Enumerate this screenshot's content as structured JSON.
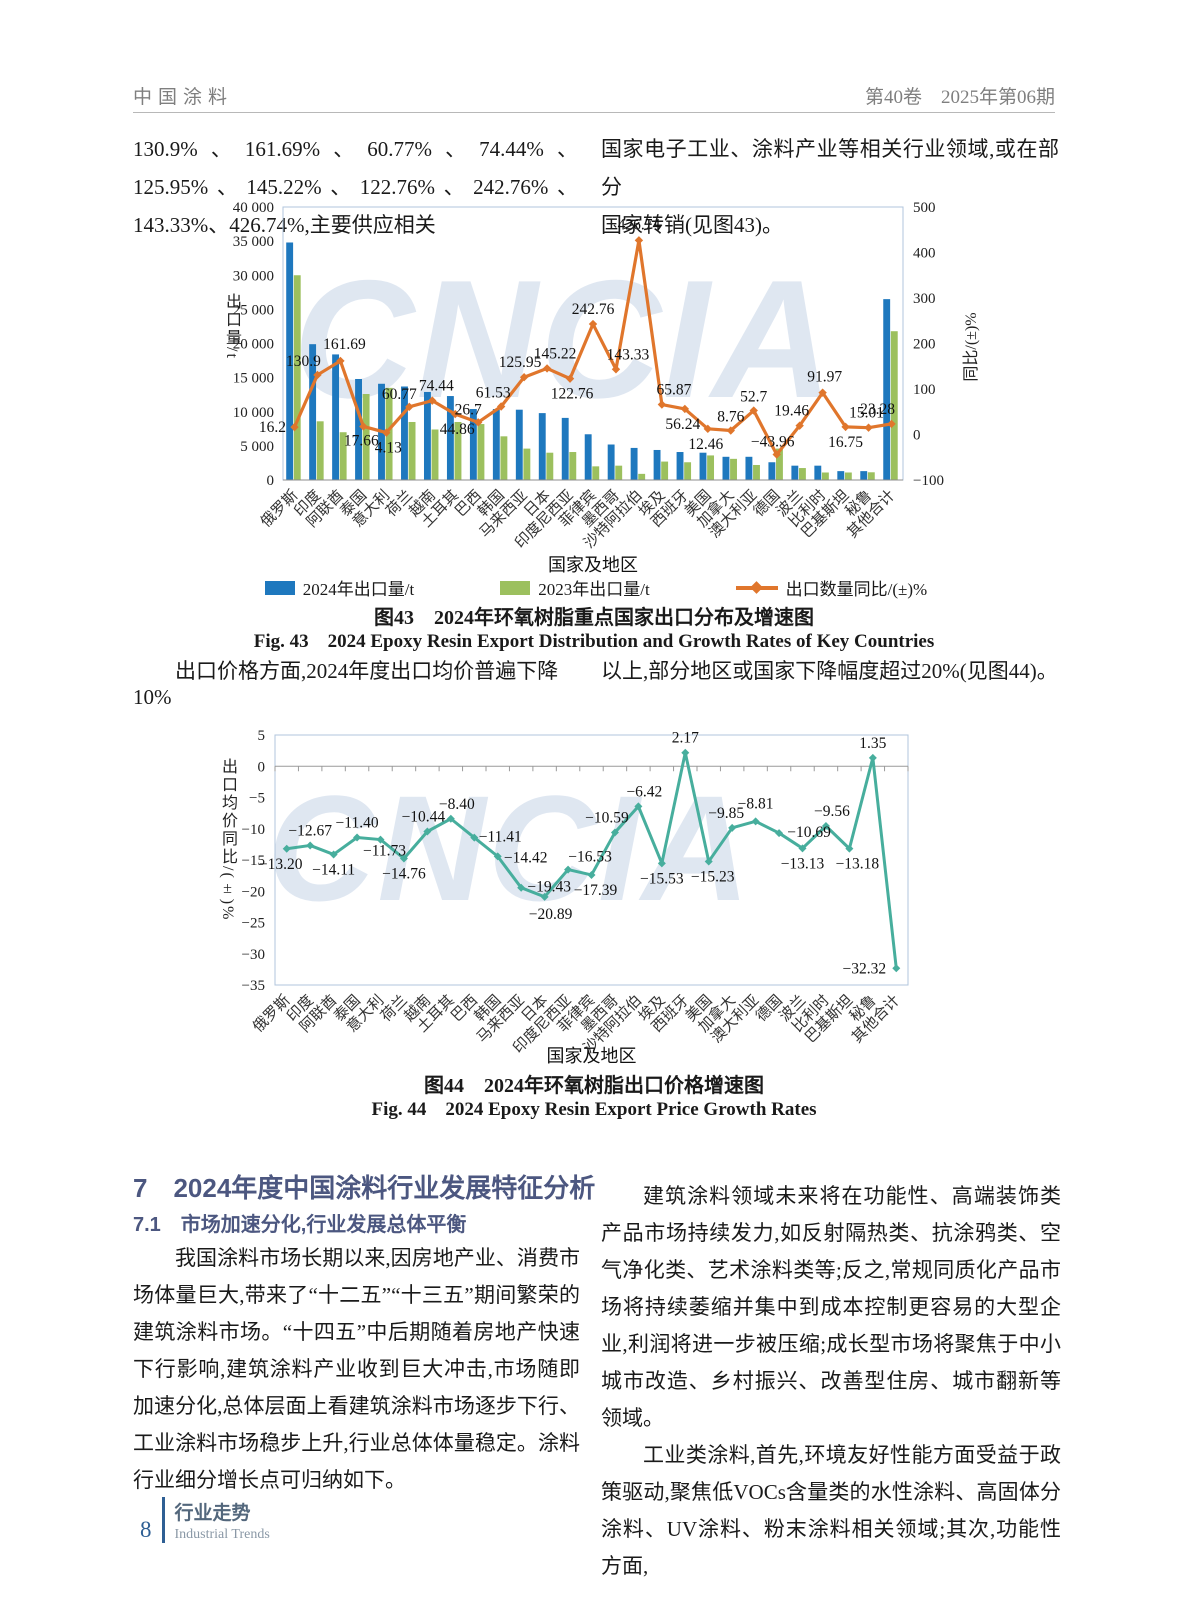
{
  "page": {
    "header": {
      "journal": "中国涂料",
      "issue": "第40卷　2025年第06期"
    },
    "intro": {
      "left": "130.9%、161.69%、60.77%、74.44%、125.95%、145.22%、122.76%、242.76%、143.33%、426.74%,主要供应相关",
      "right_line1": "国家电子工业、涂料产业等相关行业领域,或在部分",
      "right_line2": "国家转销(见图43)。"
    },
    "mid": {
      "left": "出口价格方面,2024年度出口均价普遍下降10%",
      "right": "以上,部分地区或国家下降幅度超过20%(见图44)。"
    },
    "watermark": "CNCIA",
    "section": {
      "heading": "7　2024年度中国涂料行业发展特征分析",
      "subheading": "7.1　市场加速分化,行业发展总体平衡",
      "para_left": "我国涂料市场长期以来,因房地产业、消费市场体量巨大,带来了“十二五”“十三五”期间繁荣的建筑涂料市场。“十四五”中后期随着房地产快速下行影响,建筑涂料产业收到巨大冲击,市场随即加速分化,总体层面上看建筑涂料市场逐步下行、工业涂料市场稳步上升,行业总体体量稳定。涂料行业细分增长点可归纳如下。",
      "para_right1": "建筑涂料领域未来将在功能性、高端装饰类产品市场持续发力,如反射隔热类、抗涂鸦类、空气净化类、艺术涂料类等;反之,常规同质化产品市场将持续萎缩并集中到成本控制更容易的大型企业,利润将进一步被压缩;成长型市场将聚焦于中小城市改造、乡村振兴、改善型住房、城市翻新等领域。",
      "para_right2": "工业类涂料,首先,环境友好性能方面受益于政策驱动,聚焦低VOCs含量类的水性涂料、高固体分涂料、UV涂料、粉末涂料相关领域;其次,功能性方面,"
    },
    "footer": {
      "page_number": "8",
      "column_zh": "行业走势",
      "column_en": "Industrial Trends"
    }
  },
  "chart_data": [
    {
      "id": "fig43",
      "type": "bar",
      "title": "2024年环氧树脂重点国家出口分布及增速图",
      "caption_zh": "图43　2024年环氧树脂重点国家出口分布及增速图",
      "caption_en": "Fig. 43　2024 Epoxy Resin Export Distribution and Growth Rates of Key Countries",
      "xlabel": "国家及地区",
      "ylabel_left": "出口量/t",
      "ylabel_right": "同比/(±)%",
      "ylim_left": [
        0,
        40000
      ],
      "ylim_right": [
        -100,
        500
      ],
      "ytick_values_left": [
        0,
        5000,
        10000,
        15000,
        20000,
        25000,
        30000,
        35000,
        40000
      ],
      "ytick_labels_left": [
        "0",
        "5 000",
        "10 000",
        "15 000",
        "20 000",
        "25 000",
        "30 000",
        "35 000",
        "40 000"
      ],
      "ytick_values_right": [
        500,
        400,
        300,
        200,
        100,
        0,
        -100
      ],
      "ytick_labels_right": [
        "500",
        "400",
        "300",
        "200",
        "100",
        "0",
        "−100"
      ],
      "categories": [
        "俄罗斯",
        "印度",
        "阿联酋",
        "泰国",
        "意大利",
        "荷兰",
        "越南",
        "土耳其",
        "巴西",
        "韩国",
        "马来西亚",
        "日本",
        "印度尼西亚",
        "菲律宾",
        "墨西哥",
        "沙特阿拉伯",
        "埃及",
        "西班牙",
        "美国",
        "加拿大",
        "澳大利亚",
        "德国",
        "波兰",
        "比利时",
        "巴基斯坦",
        "秘鲁",
        "其他合计"
      ],
      "series": [
        {
          "name": "2024年出口量/t",
          "type": "bar",
          "color": "#1e78be",
          "values": [
            34800,
            19900,
            18400,
            14800,
            14100,
            13700,
            12900,
            12300,
            10400,
            10400,
            10300,
            9800,
            9100,
            6700,
            5200,
            4700,
            4400,
            4100,
            4000,
            3400,
            3400,
            2600,
            2100,
            2100,
            1300,
            1300,
            26500
          ]
        },
        {
          "name": "2023年出口量/t",
          "type": "bar",
          "color": "#9cc05e",
          "values": [
            30000,
            8600,
            7000,
            12600,
            13500,
            8500,
            7400,
            8500,
            8200,
            6400,
            4600,
            4000,
            4100,
            2000,
            2100,
            900,
            2700,
            2600,
            3600,
            3100,
            2200,
            4600,
            1750,
            1100,
            1100,
            1130,
            21800
          ]
        },
        {
          "name": "出口数量同比/(±)%",
          "type": "line",
          "axis": "right",
          "color": "#e0762c",
          "values": [
            16.2,
            130.9,
            161.69,
            17.66,
            4.13,
            60.77,
            74.44,
            44.86,
            26.7,
            61.53,
            125.95,
            145.22,
            122.76,
            242.76,
            143.33,
            426.74,
            65.87,
            56.24,
            12.46,
            8.76,
            52.7,
            -43.96,
            19.46,
            91.97,
            16.75,
            15.01,
            23.28
          ],
          "labels": [
            "16.2",
            "130.9",
            "161.69",
            "17.66",
            "4.13",
            "60.77",
            "74.44",
            "44.86",
            "26.7",
            "61.53",
            "125.95",
            "145.22",
            "122.76",
            "242.76",
            "143.33",
            "426.74",
            "65.87",
            "56.24",
            "12.46",
            "8.76",
            "52.7",
            "−43.96",
            "19.46",
            "91.97",
            "16.75",
            "15.01",
            "23.28"
          ]
        }
      ],
      "legend_position": "bottom",
      "grid": false
    },
    {
      "id": "fig44",
      "type": "line",
      "title": "2024年环氧树脂出口价格增速图",
      "caption_zh": "图44　2024年环氧树脂出口价格增速图",
      "caption_en": "Fig. 44　2024 Epoxy Resin Export Price Growth Rates",
      "xlabel": "国家及地区",
      "ylabel": "出口均价同比/(±)%",
      "ylim": [
        -35,
        5
      ],
      "ytick_values": [
        5,
        0,
        -5,
        -10,
        -15,
        -20,
        -25,
        -30,
        -35
      ],
      "ytick_labels": [
        "5",
        "0",
        "−5",
        "−10",
        "−15",
        "−20",
        "−25",
        "−30",
        "−35"
      ],
      "categories": [
        "俄罗斯",
        "印度",
        "阿联酋",
        "泰国",
        "意大利",
        "荷兰",
        "越南",
        "土耳其",
        "巴西",
        "韩国",
        "马来西亚",
        "日本",
        "印度尼西亚",
        "菲律宾",
        "墨西哥",
        "沙特阿拉伯",
        "埃及",
        "西班牙",
        "美国",
        "加拿大",
        "澳大利亚",
        "德国",
        "波兰",
        "比利时",
        "巴基斯坦",
        "秘鲁",
        "其他合计"
      ],
      "series": [
        {
          "name": "出口均价同比/(±)%",
          "type": "line",
          "color": "#47ae9d",
          "values": [
            -13.2,
            -12.67,
            -14.11,
            -11.4,
            -11.73,
            -14.76,
            -10.44,
            -8.4,
            -11.41,
            -14.42,
            -19.43,
            -20.89,
            -16.53,
            -17.39,
            -10.59,
            -6.42,
            -15.53,
            2.17,
            -15.23,
            -9.85,
            -8.81,
            -10.69,
            -13.13,
            -9.56,
            -13.18,
            1.35,
            -32.32
          ],
          "labels": [
            "−13.20",
            "−12.67",
            "−14.11",
            "−11.40",
            "−11.73",
            "−14.76",
            "−10.44",
            "−8.40",
            "−11.41",
            "−14.42",
            "−19.43",
            "−20.89",
            "−16.53",
            "−17.39",
            "−10.59",
            "−6.42",
            "−15.53",
            "2.17",
            "−15.23",
            "−9.85",
            "−8.81",
            "−10.69",
            "−13.13",
            "−9.56",
            "−13.18",
            "1.35",
            "−32.32"
          ]
        }
      ],
      "grid": false
    }
  ]
}
